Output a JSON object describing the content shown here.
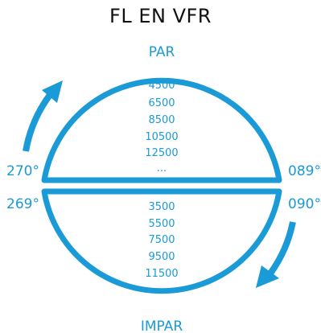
{
  "title": "FL EN VFR",
  "colors": {
    "accent": "#1a9ad6",
    "text": "#111111"
  },
  "top": {
    "label": "PAR",
    "left_heading": "270°",
    "right_heading": "089°",
    "levels": [
      "4500",
      "6500",
      "8500",
      "10500",
      "12500",
      "..."
    ]
  },
  "bottom": {
    "label": "IMPAR",
    "left_heading": "269°",
    "right_heading": "090°",
    "levels": [
      "3500",
      "5500",
      "7500",
      "9500",
      "11500",
      "..."
    ]
  }
}
